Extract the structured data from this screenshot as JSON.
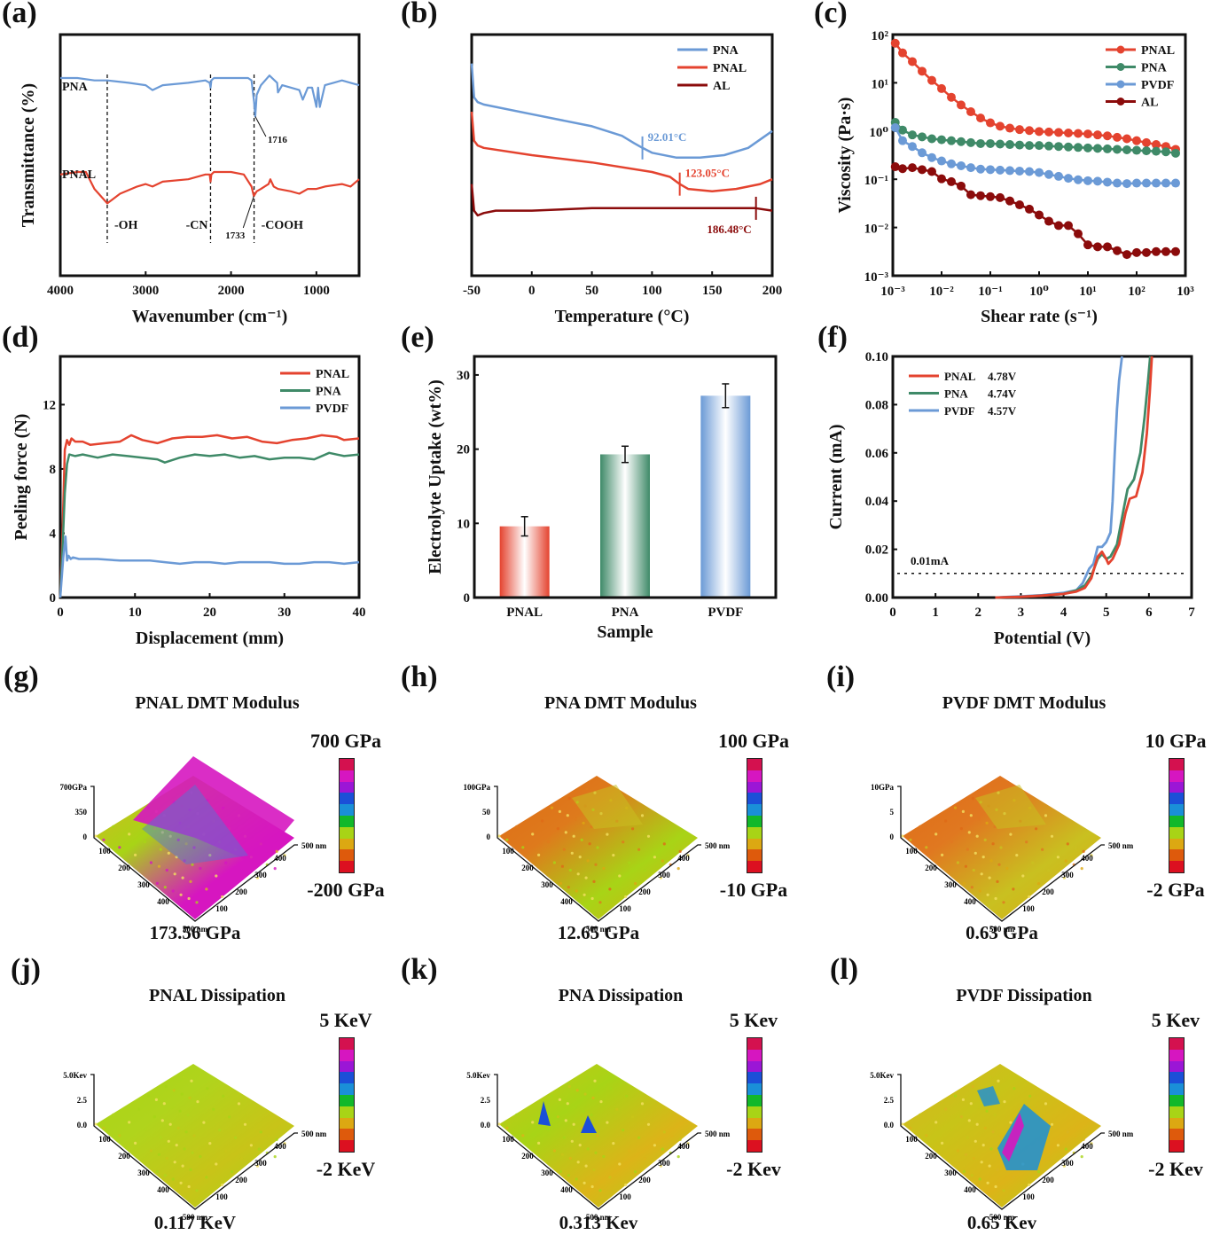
{
  "panel_labels": [
    "(a)",
    "(b)",
    "(c)",
    "(d)",
    "(e)",
    "(f)",
    "(g)",
    "(h)",
    "(i)",
    "(j)",
    "(k)",
    "(l)"
  ],
  "colors": {
    "red": "#e4432f",
    "blue": "#6b9ad6",
    "green": "#3f8a68",
    "darkred": "#8b0b0b",
    "black": "#111111"
  },
  "chart_data": [
    {
      "id": "a",
      "type": "line",
      "title": "",
      "xlabel": "Wavenumber (cm⁻¹)",
      "ylabel": "Transmittance (%)",
      "xlim": [
        4000,
        500
      ],
      "xticks": [
        "4000",
        "3000",
        "2000",
        "1000"
      ],
      "xtick_values": [
        4000,
        3000,
        2000,
        1000
      ],
      "series": [
        {
          "name": "PNA",
          "color": "#6b9ad6",
          "x": [
            4000,
            3800,
            3600,
            3450,
            3200,
            3000,
            2920,
            2800,
            2500,
            2300,
            2250,
            2240,
            2230,
            2200,
            2000,
            1800,
            1760,
            1730,
            1716,
            1700,
            1650,
            1550,
            1460,
            1450,
            1400,
            1300,
            1200,
            1160,
            1100,
            1050,
            1000,
            980,
            960,
            900,
            800,
            700,
            600,
            500
          ],
          "y": [
            0.82,
            0.82,
            0.81,
            0.81,
            0.8,
            0.79,
            0.77,
            0.79,
            0.8,
            0.81,
            0.8,
            0.78,
            0.81,
            0.82,
            0.82,
            0.82,
            0.81,
            0.72,
            0.66,
            0.75,
            0.79,
            0.83,
            0.8,
            0.76,
            0.79,
            0.78,
            0.77,
            0.73,
            0.78,
            0.78,
            0.7,
            0.78,
            0.7,
            0.79,
            0.8,
            0.81,
            0.8,
            0.79
          ]
        },
        {
          "name": "PNAL",
          "color": "#e4432f",
          "x": [
            4000,
            3800,
            3700,
            3600,
            3450,
            3300,
            3100,
            3000,
            2920,
            2800,
            2500,
            2300,
            2250,
            2240,
            2230,
            2200,
            2000,
            1850,
            1760,
            1733,
            1700,
            1650,
            1560,
            1540,
            1500,
            1450,
            1300,
            1200,
            1100,
            1000,
            900,
            700,
            600,
            500
          ],
          "y": [
            0.42,
            0.43,
            0.43,
            0.36,
            0.3,
            0.34,
            0.37,
            0.38,
            0.37,
            0.39,
            0.4,
            0.42,
            0.42,
            0.39,
            0.42,
            0.43,
            0.43,
            0.42,
            0.37,
            0.33,
            0.35,
            0.36,
            0.38,
            0.4,
            0.37,
            0.36,
            0.35,
            0.34,
            0.36,
            0.36,
            0.37,
            0.38,
            0.37,
            0.4
          ]
        }
      ],
      "vlines": [
        3450,
        2240,
        1730
      ],
      "annotations": [
        "-OH",
        "-CN",
        "-COOH",
        "1716",
        "1733",
        "PNA",
        "PNAL"
      ]
    },
    {
      "id": "b",
      "type": "line",
      "xlabel": "Temperature (°C)",
      "ylabel": "",
      "xlim": [
        -50,
        200
      ],
      "xticks": [
        "-50",
        "0",
        "50",
        "100",
        "150",
        "200"
      ],
      "xtick_values": [
        -50,
        0,
        50,
        100,
        150,
        200
      ],
      "legend": "top-right",
      "series": [
        {
          "name": "PNA",
          "color": "#6b9ad6",
          "x": [
            -50,
            -48,
            -45,
            -40,
            0,
            50,
            75,
            85,
            92,
            100,
            120,
            140,
            160,
            180,
            200
          ],
          "y": [
            0.88,
            0.74,
            0.72,
            0.71,
            0.67,
            0.62,
            0.58,
            0.55,
            0.53,
            0.51,
            0.49,
            0.49,
            0.5,
            0.53,
            0.6
          ]
        },
        {
          "name": "PNAL",
          "color": "#e4432f",
          "x": [
            -50,
            -48,
            -45,
            -40,
            0,
            50,
            100,
            115,
            123,
            130,
            150,
            170,
            190,
            200
          ],
          "y": [
            0.68,
            0.56,
            0.54,
            0.53,
            0.5,
            0.47,
            0.43,
            0.41,
            0.38,
            0.36,
            0.35,
            0.36,
            0.38,
            0.4
          ]
        },
        {
          "name": "AL",
          "color": "#8b0b0b",
          "x": [
            -50,
            -48,
            -45,
            -40,
            -30,
            0,
            50,
            100,
            150,
            186,
            200
          ],
          "y": [
            0.38,
            0.27,
            0.25,
            0.26,
            0.27,
            0.27,
            0.28,
            0.28,
            0.28,
            0.28,
            0.27
          ]
        }
      ],
      "markers": [
        {
          "x": 92.01,
          "label": "92.01°C",
          "series": "PNA"
        },
        {
          "x": 123.05,
          "label": "123.05°C",
          "series": "PNAL"
        },
        {
          "x": 186.48,
          "label": "186.48°C",
          "series": "AL"
        }
      ]
    },
    {
      "id": "c",
      "type": "line",
      "xlabel": "Shear rate (s⁻¹)",
      "ylabel": "Viscosity (Pa·s)",
      "xscale": "log",
      "yscale": "log",
      "xlim": [
        -3,
        3
      ],
      "ylim": [
        -3,
        2
      ],
      "xticks": [
        "10⁻³",
        "10⁻²",
        "10⁻¹",
        "10⁰",
        "10¹",
        "10²",
        "10³"
      ],
      "yticks": [
        "10⁻³",
        "10⁻²",
        "10⁻¹",
        "10⁰",
        "10¹",
        "10²"
      ],
      "legend": "top-right",
      "log10_x": [
        -2.95,
        -2.8,
        -2.6,
        -2.4,
        -2.2,
        -2.0,
        -1.8,
        -1.6,
        -1.4,
        -1.2,
        -1.0,
        -0.8,
        -0.6,
        -0.4,
        -0.2,
        0.0,
        0.2,
        0.4,
        0.6,
        0.8,
        1.0,
        1.2,
        1.4,
        1.6,
        1.8,
        2.0,
        2.2,
        2.4,
        2.6,
        2.8
      ],
      "series": [
        {
          "name": "PNAL",
          "color": "#e4432f",
          "log10_y": [
            1.82,
            1.62,
            1.44,
            1.24,
            1.05,
            0.88,
            0.7,
            0.54,
            0.4,
            0.27,
            0.17,
            0.1,
            0.06,
            0.03,
            0.01,
            -0.01,
            -0.02,
            -0.03,
            -0.04,
            -0.05,
            -0.06,
            -0.08,
            -0.1,
            -0.13,
            -0.16,
            -0.2,
            -0.24,
            -0.28,
            -0.32,
            -0.38
          ]
        },
        {
          "name": "PNA",
          "color": "#3f8a68",
          "log10_y": [
            0.18,
            0.02,
            -0.08,
            -0.12,
            -0.16,
            -0.18,
            -0.2,
            -0.22,
            -0.24,
            -0.26,
            -0.26,
            -0.27,
            -0.28,
            -0.29,
            -0.3,
            -0.3,
            -0.31,
            -0.32,
            -0.33,
            -0.34,
            -0.35,
            -0.36,
            -0.37,
            -0.38,
            -0.39,
            -0.4,
            -0.41,
            -0.42,
            -0.43,
            -0.46
          ]
        },
        {
          "name": "PVDF",
          "color": "#6b9ad6",
          "log10_y": [
            0.07,
            -0.2,
            -0.32,
            -0.45,
            -0.55,
            -0.62,
            -0.68,
            -0.72,
            -0.76,
            -0.79,
            -0.8,
            -0.81,
            -0.82,
            -0.83,
            -0.84,
            -0.86,
            -0.9,
            -0.94,
            -0.98,
            -1.01,
            -1.03,
            -1.04,
            -1.06,
            -1.08,
            -1.09,
            -1.08,
            -1.08,
            -1.08,
            -1.08,
            -1.08
          ]
        },
        {
          "name": "AL",
          "color": "#8b0b0b",
          "log10_y": [
            -0.74,
            -0.78,
            -0.76,
            -0.8,
            -0.84,
            -0.99,
            -1.05,
            -1.14,
            -1.32,
            -1.34,
            -1.36,
            -1.38,
            -1.45,
            -1.53,
            -1.62,
            -1.74,
            -1.87,
            -1.96,
            -1.96,
            -2.13,
            -2.36,
            -2.4,
            -2.4,
            -2.48,
            -2.56,
            -2.52,
            -2.52,
            -2.5,
            -2.5,
            -2.5
          ]
        }
      ]
    },
    {
      "id": "d",
      "type": "line",
      "xlabel": "Displacement (mm)",
      "ylabel": "Peeling force (N)",
      "xlim": [
        0,
        40
      ],
      "ylim": [
        0,
        15
      ],
      "xticks": [
        "0",
        "10",
        "20",
        "30",
        "40"
      ],
      "xtick_values": [
        0,
        10,
        20,
        30,
        40
      ],
      "yticks": [
        "0",
        "4",
        "8",
        "12"
      ],
      "ytick_values": [
        0,
        4,
        8,
        12
      ],
      "legend": "top-right",
      "series": [
        {
          "name": "PNAL",
          "color": "#e4432f",
          "x": [
            0,
            0.3,
            0.6,
            0.9,
            1.2,
            1.5,
            2,
            3,
            4,
            6,
            8,
            9.5,
            11,
            13,
            15,
            17,
            19,
            21,
            23,
            25,
            27,
            29,
            31,
            33,
            35,
            37,
            38,
            40
          ],
          "y": [
            0,
            4,
            9.2,
            9.8,
            9.5,
            9.9,
            9.7,
            9.7,
            9.5,
            9.6,
            9.7,
            10.1,
            9.8,
            9.6,
            9.9,
            10.0,
            10.0,
            10.1,
            9.9,
            10.0,
            9.7,
            9.6,
            9.8,
            9.9,
            10.1,
            10.0,
            9.8,
            9.9
          ]
        },
        {
          "name": "PNA",
          "color": "#3f8a68",
          "x": [
            0,
            0.3,
            0.6,
            0.9,
            1.2,
            2,
            3,
            5,
            7,
            9,
            11,
            13,
            14,
            16,
            18,
            20,
            22,
            24,
            26,
            28,
            30,
            32,
            34,
            36,
            38,
            40
          ],
          "y": [
            0,
            3,
            6.5,
            8.3,
            8.9,
            8.8,
            8.9,
            8.7,
            8.9,
            8.8,
            8.7,
            8.6,
            8.4,
            8.7,
            8.9,
            8.8,
            8.9,
            8.7,
            8.8,
            8.6,
            8.7,
            8.7,
            8.6,
            9.0,
            8.8,
            8.9
          ]
        },
        {
          "name": "PVDF",
          "color": "#6b9ad6",
          "x": [
            0,
            0.4,
            0.7,
            0.9,
            1.1,
            1.4,
            1.7,
            2.5,
            5,
            8,
            10,
            12,
            14,
            16,
            18,
            20,
            22,
            24,
            26,
            28,
            30,
            32,
            34,
            36,
            38,
            40
          ],
          "y": [
            0,
            2.5,
            3.8,
            2.3,
            2.6,
            2.4,
            2.5,
            2.4,
            2.4,
            2.3,
            2.3,
            2.3,
            2.2,
            2.1,
            2.2,
            2.2,
            2.1,
            2.2,
            2.2,
            2.2,
            2.1,
            2.1,
            2.2,
            2.2,
            2.1,
            2.2
          ]
        }
      ]
    },
    {
      "id": "e",
      "type": "bar",
      "xlabel": "Sample",
      "ylabel": "Electrolyte Uptake (wt%)",
      "ylim": [
        0,
        32.5
      ],
      "yticks": [
        "0",
        "10",
        "20",
        "30"
      ],
      "ytick_values": [
        0,
        10,
        20,
        30
      ],
      "categories": [
        "PNAL",
        "PNA",
        "PVDF"
      ],
      "values": [
        9.6,
        19.3,
        27.2
      ],
      "errors": [
        1.3,
        1.1,
        1.6
      ],
      "colors": [
        "#e4432f",
        "#3f8a68",
        "#6b9ad6"
      ]
    },
    {
      "id": "f",
      "type": "line",
      "xlabel": "Potential (V)",
      "ylabel": "Current (mA)",
      "xlim": [
        0,
        7
      ],
      "ylim": [
        0,
        0.1
      ],
      "xticks": [
        "0",
        "1",
        "2",
        "3",
        "4",
        "5",
        "6",
        "7"
      ],
      "xtick_values": [
        0,
        1,
        2,
        3,
        4,
        5,
        6,
        7
      ],
      "yticks": [
        "0.00",
        "0.02",
        "0.04",
        "0.06",
        "0.08",
        "0.10"
      ],
      "ytick_values": [
        0,
        0.02,
        0.04,
        0.06,
        0.08,
        0.1
      ],
      "legend": "top-left",
      "hline": {
        "y": 0.01,
        "label": "0.01mA"
      },
      "series": [
        {
          "name": "PNAL",
          "label_value": "4.78V",
          "color": "#e4432f",
          "x": [
            2.4,
            3,
            3.5,
            4,
            4.3,
            4.5,
            4.65,
            4.8,
            4.9,
            5.0,
            5.05,
            5.15,
            5.3,
            5.45,
            5.55,
            5.7,
            5.85,
            5.95,
            6.02,
            6.07
          ],
          "y": [
            0,
            0.0003,
            0.0008,
            0.0015,
            0.0025,
            0.004,
            0.008,
            0.017,
            0.019,
            0.016,
            0.014,
            0.016,
            0.022,
            0.035,
            0.041,
            0.042,
            0.052,
            0.068,
            0.085,
            0.1
          ]
        },
        {
          "name": "PNA",
          "label_value": "4.74V",
          "color": "#3f8a68",
          "x": [
            2.4,
            3,
            3.5,
            4,
            4.3,
            4.5,
            4.65,
            4.8,
            4.9,
            5.0,
            5.1,
            5.25,
            5.4,
            5.5,
            5.65,
            5.8,
            5.9,
            5.98,
            6.03
          ],
          "y": [
            0,
            0.0003,
            0.0008,
            0.0015,
            0.003,
            0.005,
            0.009,
            0.016,
            0.018,
            0.016,
            0.017,
            0.022,
            0.036,
            0.045,
            0.049,
            0.06,
            0.075,
            0.09,
            0.1
          ]
        },
        {
          "name": "PVDF",
          "label_value": "4.57V",
          "color": "#6b9ad6",
          "x": [
            2.4,
            3,
            3.5,
            4,
            4.3,
            4.45,
            4.6,
            4.7,
            4.8,
            4.9,
            5.0,
            5.1,
            5.15,
            5.2,
            5.25,
            5.3,
            5.37
          ],
          "y": [
            0,
            0.0005,
            0.001,
            0.002,
            0.003,
            0.006,
            0.012,
            0.014,
            0.021,
            0.021,
            0.023,
            0.027,
            0.04,
            0.06,
            0.078,
            0.09,
            0.1
          ]
        }
      ]
    }
  ],
  "fig_a": {
    "label_pna": "PNA",
    "label_pnal": "PNAL",
    "oh": "-OH",
    "cn": "-CN",
    "cooh": "-COOH",
    "peak1": "1716",
    "peak2": "1733"
  },
  "afm": [
    {
      "id": "g",
      "title": "PNAL  DMT Modulus",
      "cb_top": "700 GPa",
      "cb_bottom": "-200 GPa",
      "value": "173.56 GPa",
      "z_labels": [
        "700GPa",
        "350",
        "0"
      ],
      "surface": "pnal-dmt"
    },
    {
      "id": "h",
      "title": "PNA  DMT Modulus",
      "cb_top": "100 GPa",
      "cb_bottom": "-10 GPa",
      "value": "12.65 GPa",
      "z_labels": [
        "100GPa",
        "50",
        "0"
      ],
      "surface": "pna-dmt"
    },
    {
      "id": "i",
      "title": "PVDF  DMT Modulus",
      "cb_top": "10 GPa",
      "cb_bottom": "-2 GPa",
      "value": "0.63 GPa",
      "z_labels": [
        "10GPa",
        "5",
        "0"
      ],
      "surface": "pvdf-dmt"
    },
    {
      "id": "j",
      "title": "PNAL Dissipation",
      "cb_top": "5 KeV",
      "cb_bottom": "-2 KeV",
      "value": "0.117 KeV",
      "z_labels": [
        "5.0Kev",
        "2.5",
        "0.0"
      ],
      "surface": "pnal-dis"
    },
    {
      "id": "k",
      "title": "PNA Dissipation",
      "cb_top": "5 Kev",
      "cb_bottom": "-2 Kev",
      "value": "0.313 Kev",
      "z_labels": [
        "5.0Kev",
        "2.5",
        "0.0"
      ],
      "surface": "pna-dis"
    },
    {
      "id": "l",
      "title": "PVDF  Dissipation",
      "cb_top": "5 Kev",
      "cb_bottom": "-2 Kev",
      "value": "0.65 Kev",
      "z_labels": [
        "5.0Kev",
        "2.5",
        "0.0"
      ],
      "surface": "pvdf-dis"
    }
  ],
  "afm_axis_ticks": [
    "100",
    "200",
    "300",
    "400",
    "500 nm"
  ],
  "colorbar_colors": [
    "#d4114f",
    "#d616c0",
    "#9b16d6",
    "#1b4fd8",
    "#1a8fd8",
    "#12b82a",
    "#a8d416",
    "#dca812",
    "#de5a0c",
    "#dc1020"
  ]
}
